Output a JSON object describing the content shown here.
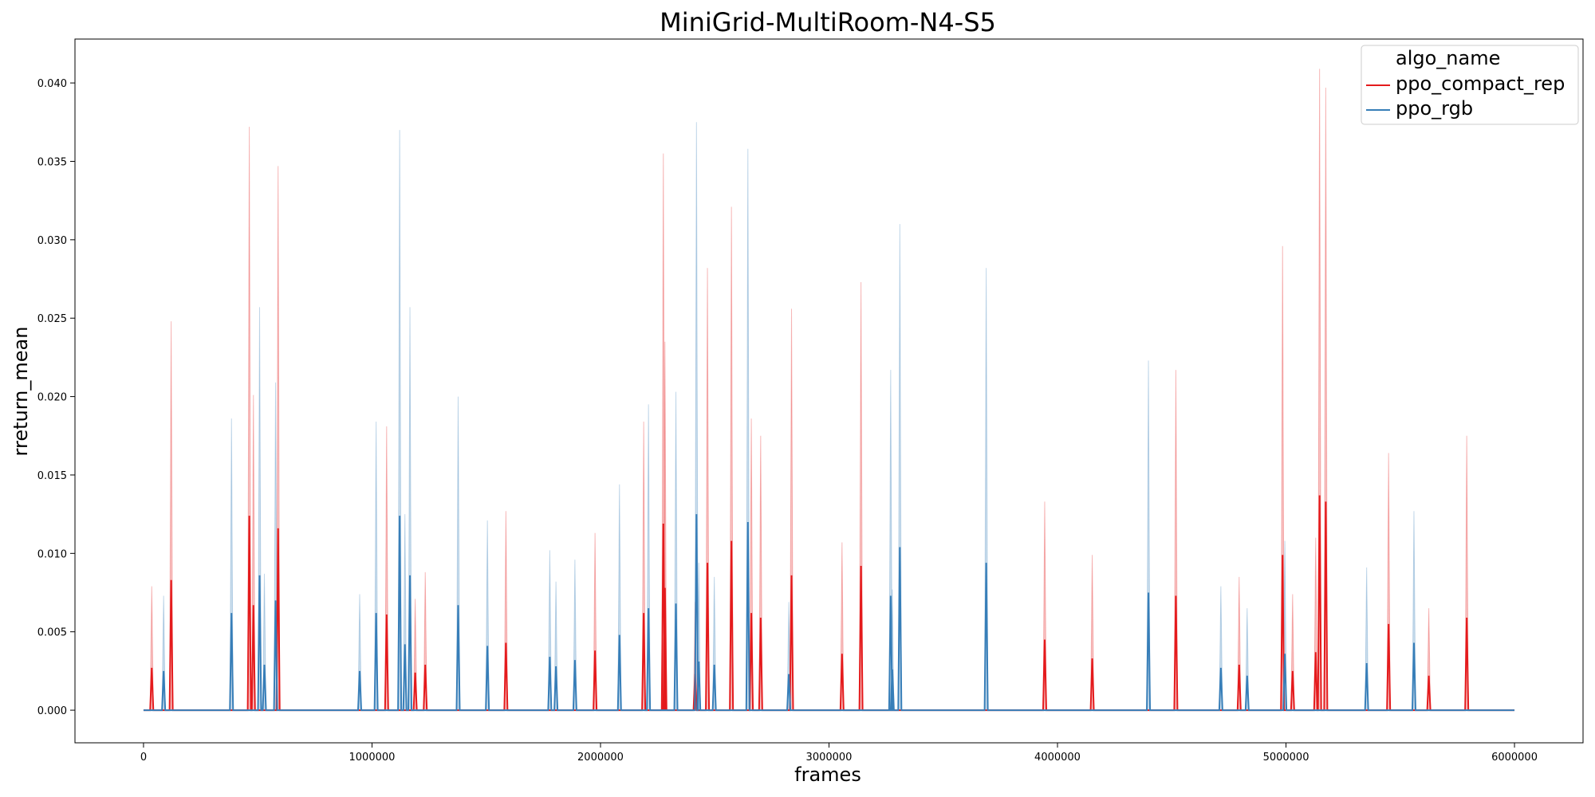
{
  "chart_data": {
    "type": "line",
    "title": "MiniGrid-MultiRoom-N4-S5",
    "xlabel": "frames",
    "ylabel": "rreturn_mean",
    "xlim": [
      -300000,
      6300000
    ],
    "ylim": [
      -0.00208,
      0.0428
    ],
    "x_ticks": [
      0,
      1000000,
      2000000,
      3000000,
      4000000,
      5000000,
      6000000
    ],
    "x_tick_labels": [
      "0",
      "1000000",
      "2000000",
      "3000000",
      "4000000",
      "5000000",
      "6000000"
    ],
    "y_ticks": [
      0.0,
      0.005,
      0.01,
      0.015,
      0.02,
      0.025,
      0.03,
      0.035,
      0.04
    ],
    "y_tick_labels": [
      "0.000",
      "0.005",
      "0.010",
      "0.015",
      "0.020",
      "0.025",
      "0.030",
      "0.035",
      "0.040"
    ],
    "x_range": [
      0,
      6000000
    ],
    "grid": false,
    "legend": {
      "title": "algo_name",
      "placement": "top-right"
    },
    "series": [
      {
        "name": "ppo_compact_rep",
        "color": "#e41a1c",
        "spikes": [
          {
            "x": 36000,
            "mean": 0.0027,
            "upper": 0.0079
          },
          {
            "x": 121000,
            "mean": 0.0083,
            "upper": 0.0248
          },
          {
            "x": 463000,
            "mean": 0.0124,
            "upper": 0.0372
          },
          {
            "x": 481000,
            "mean": 0.0067,
            "upper": 0.0201
          },
          {
            "x": 589000,
            "mean": 0.0116,
            "upper": 0.0347
          },
          {
            "x": 1064000,
            "mean": 0.0061,
            "upper": 0.0181
          },
          {
            "x": 1189000,
            "mean": 0.0024,
            "upper": 0.0071
          },
          {
            "x": 1233000,
            "mean": 0.0029,
            "upper": 0.0088
          },
          {
            "x": 1586000,
            "mean": 0.0043,
            "upper": 0.0127
          },
          {
            "x": 1976000,
            "mean": 0.0038,
            "upper": 0.0113
          },
          {
            "x": 2189000,
            "mean": 0.0062,
            "upper": 0.0184
          },
          {
            "x": 2275000,
            "mean": 0.0119,
            "upper": 0.0355
          },
          {
            "x": 2282000,
            "mean": 0.0078,
            "upper": 0.0235
          },
          {
            "x": 2414000,
            "mean": 0.0023,
            "upper": 0.0069
          },
          {
            "x": 2468000,
            "mean": 0.0094,
            "upper": 0.0282
          },
          {
            "x": 2573000,
            "mean": 0.0108,
            "upper": 0.0321
          },
          {
            "x": 2660000,
            "mean": 0.0062,
            "upper": 0.0186
          },
          {
            "x": 2701000,
            "mean": 0.0059,
            "upper": 0.0175
          },
          {
            "x": 2836000,
            "mean": 0.0086,
            "upper": 0.0256
          },
          {
            "x": 3057000,
            "mean": 0.0036,
            "upper": 0.0107
          },
          {
            "x": 3140000,
            "mean": 0.0092,
            "upper": 0.0273
          },
          {
            "x": 3944000,
            "mean": 0.0045,
            "upper": 0.0133
          },
          {
            "x": 4152000,
            "mean": 0.0033,
            "upper": 0.0099
          },
          {
            "x": 4518000,
            "mean": 0.0073,
            "upper": 0.0217
          },
          {
            "x": 4795000,
            "mean": 0.0029,
            "upper": 0.0085
          },
          {
            "x": 4985000,
            "mean": 0.0099,
            "upper": 0.0296
          },
          {
            "x": 5029000,
            "mean": 0.0025,
            "upper": 0.0074
          },
          {
            "x": 5130000,
            "mean": 0.0037,
            "upper": 0.011
          },
          {
            "x": 5147000,
            "mean": 0.0137,
            "upper": 0.0409
          },
          {
            "x": 5174000,
            "mean": 0.0133,
            "upper": 0.0397
          },
          {
            "x": 5449000,
            "mean": 0.0055,
            "upper": 0.0164
          },
          {
            "x": 5625000,
            "mean": 0.0022,
            "upper": 0.0065
          },
          {
            "x": 5791000,
            "mean": 0.0059,
            "upper": 0.0175
          }
        ]
      },
      {
        "name": "ppo_rgb",
        "color": "#377eb8",
        "spikes": [
          {
            "x": 88000,
            "mean": 0.0025,
            "upper": 0.0073
          },
          {
            "x": 385000,
            "mean": 0.0062,
            "upper": 0.0186
          },
          {
            "x": 508000,
            "mean": 0.0086,
            "upper": 0.0257
          },
          {
            "x": 529000,
            "mean": 0.0029,
            "upper": 0.0087
          },
          {
            "x": 578000,
            "mean": 0.007,
            "upper": 0.0209
          },
          {
            "x": 946000,
            "mean": 0.0025,
            "upper": 0.0074
          },
          {
            "x": 1018000,
            "mean": 0.0062,
            "upper": 0.0184
          },
          {
            "x": 1121000,
            "mean": 0.0124,
            "upper": 0.037
          },
          {
            "x": 1144000,
            "mean": 0.0042,
            "upper": 0.0125
          },
          {
            "x": 1166000,
            "mean": 0.0086,
            "upper": 0.0257
          },
          {
            "x": 1377000,
            "mean": 0.0067,
            "upper": 0.02
          },
          {
            "x": 1505000,
            "mean": 0.0041,
            "upper": 0.0121
          },
          {
            "x": 1778000,
            "mean": 0.0034,
            "upper": 0.0102
          },
          {
            "x": 1805000,
            "mean": 0.0028,
            "upper": 0.0082
          },
          {
            "x": 1888000,
            "mean": 0.0032,
            "upper": 0.0096
          },
          {
            "x": 2083000,
            "mean": 0.0048,
            "upper": 0.0144
          },
          {
            "x": 2210000,
            "mean": 0.0065,
            "upper": 0.0195
          },
          {
            "x": 2330000,
            "mean": 0.0068,
            "upper": 0.0203
          },
          {
            "x": 2420000,
            "mean": 0.0125,
            "upper": 0.0375
          },
          {
            "x": 2430000,
            "mean": 0.0031,
            "upper": 0.0094
          },
          {
            "x": 2498000,
            "mean": 0.0029,
            "upper": 0.0085
          },
          {
            "x": 2645000,
            "mean": 0.012,
            "upper": 0.0358
          },
          {
            "x": 2824000,
            "mean": 0.0023,
            "upper": 0.0069
          },
          {
            "x": 3270000,
            "mean": 0.0073,
            "upper": 0.0217
          },
          {
            "x": 3277000,
            "mean": 0.0026,
            "upper": 0.0077
          },
          {
            "x": 3310000,
            "mean": 0.0104,
            "upper": 0.031
          },
          {
            "x": 3688000,
            "mean": 0.0094,
            "upper": 0.0282
          },
          {
            "x": 4398000,
            "mean": 0.0075,
            "upper": 0.0223
          },
          {
            "x": 4715000,
            "mean": 0.0027,
            "upper": 0.0079
          },
          {
            "x": 4830000,
            "mean": 0.0022,
            "upper": 0.0065
          },
          {
            "x": 4995000,
            "mean": 0.0036,
            "upper": 0.0108
          },
          {
            "x": 5353000,
            "mean": 0.003,
            "upper": 0.0091
          },
          {
            "x": 5560000,
            "mean": 0.0043,
            "upper": 0.0127
          }
        ]
      }
    ]
  }
}
